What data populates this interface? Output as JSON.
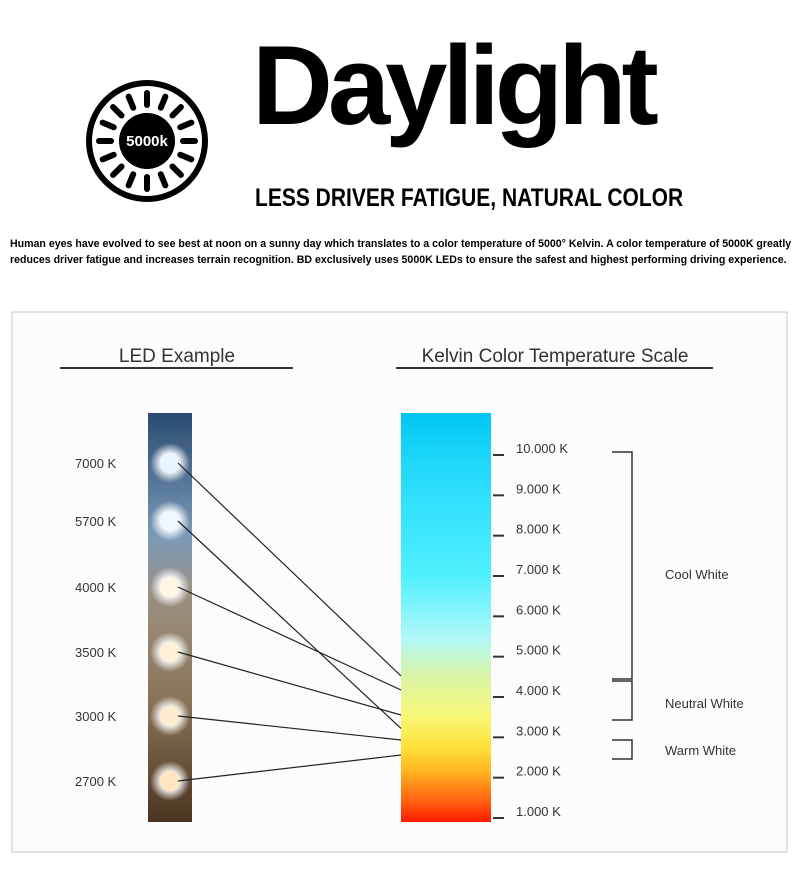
{
  "logo": {
    "badge_text": "5000k",
    "icon": "sun-icon"
  },
  "header": {
    "title": "Daylight",
    "tagline": "LESS DRIVER FATIGUE, NATURAL COLOR"
  },
  "intro_text": "Human eyes have evolved to see best at noon on a sunny day which translates to a color temperature of 5000° Kelvin.   A color temperature of 5000K greatly reduces driver fatigue and increases terrain recognition.  BD exclusively uses 5000K LEDs to ensure the safest and highest performing driving experience.",
  "diagram": {
    "led_heading": "LED Example",
    "scale_heading": "Kelvin Color Temperature Scale",
    "leds": [
      {
        "label": "7000 K",
        "kelvin": 7000,
        "color": "#e8f6ff"
      },
      {
        "label": "5700 K",
        "kelvin": 5700,
        "color": "#f0f8ff"
      },
      {
        "label": "4000 K",
        "kelvin": 4000,
        "color": "#fff6e4"
      },
      {
        "label": "3500 K",
        "kelvin": 3500,
        "color": "#fff0d8"
      },
      {
        "label": "3000 K",
        "kelvin": 3000,
        "color": "#ffecd0"
      },
      {
        "label": "2700 K",
        "kelvin": 2700,
        "color": "#ffe6c0"
      }
    ],
    "scale_ticks": [
      "10.000 K",
      "9.000 K",
      "8.000 K",
      "7.000 K",
      "6.000 K",
      "5.000 K",
      "4.000 K",
      "3.000 K",
      "2.000 K",
      "1.000 K"
    ],
    "ranges": [
      {
        "label": "Cool White"
      },
      {
        "label": "Neutral White"
      },
      {
        "label": "Warm White"
      }
    ],
    "scale_colors": [
      "#00c6f2",
      "#20d8fa",
      "#50f0ff",
      "#b0f8f8",
      "#d8f4a8",
      "#f8f878",
      "#ffe038",
      "#ffb020",
      "#ff6010",
      "#ff1a00"
    ]
  }
}
